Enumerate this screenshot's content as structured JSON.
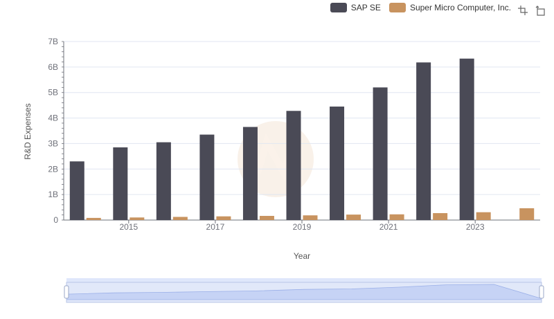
{
  "legend": {
    "series0": "SAP SE",
    "series1": "Super Micro Computer, Inc."
  },
  "toolbox": {
    "zoom_icon": "zoom-select-icon",
    "restore_icon": "zoom-restore-icon"
  },
  "colors": {
    "series0": "#4a4a56",
    "series1": "#c8935f",
    "grid": "#e0e6f1",
    "axis": "#6e7079",
    "zoom_fill": "#dfe7fb",
    "zoom_border": "#b8c5e6"
  },
  "chart_data": {
    "type": "bar",
    "title": "",
    "xlabel": "Year",
    "ylabel": "R&D Expenses",
    "ylim": [
      0,
      7000000000
    ],
    "y_ticks": [
      "0",
      "1B",
      "2B",
      "3B",
      "4B",
      "5B",
      "6B",
      "7B"
    ],
    "x_tick_labels": [
      "2015",
      "2017",
      "2019",
      "2021",
      "2023"
    ],
    "categories": [
      "2014",
      "2015",
      "2016",
      "2017",
      "2018",
      "2019",
      "2020",
      "2021",
      "2022",
      "2023",
      "2024"
    ],
    "series": [
      {
        "name": "SAP SE",
        "values": [
          2300000000,
          2850000000,
          3050000000,
          3350000000,
          3650000000,
          4280000000,
          4450000000,
          5200000000,
          6180000000,
          6330000000,
          null
        ]
      },
      {
        "name": "Super Micro Computer, Inc.",
        "values": [
          84000000,
          101000000,
          124000000,
          145000000,
          163000000,
          184000000,
          214000000,
          224000000,
          272000000,
          307000000,
          463000000
        ]
      }
    ],
    "grid": true,
    "legend_position": "top-right",
    "data_zoom": true
  }
}
